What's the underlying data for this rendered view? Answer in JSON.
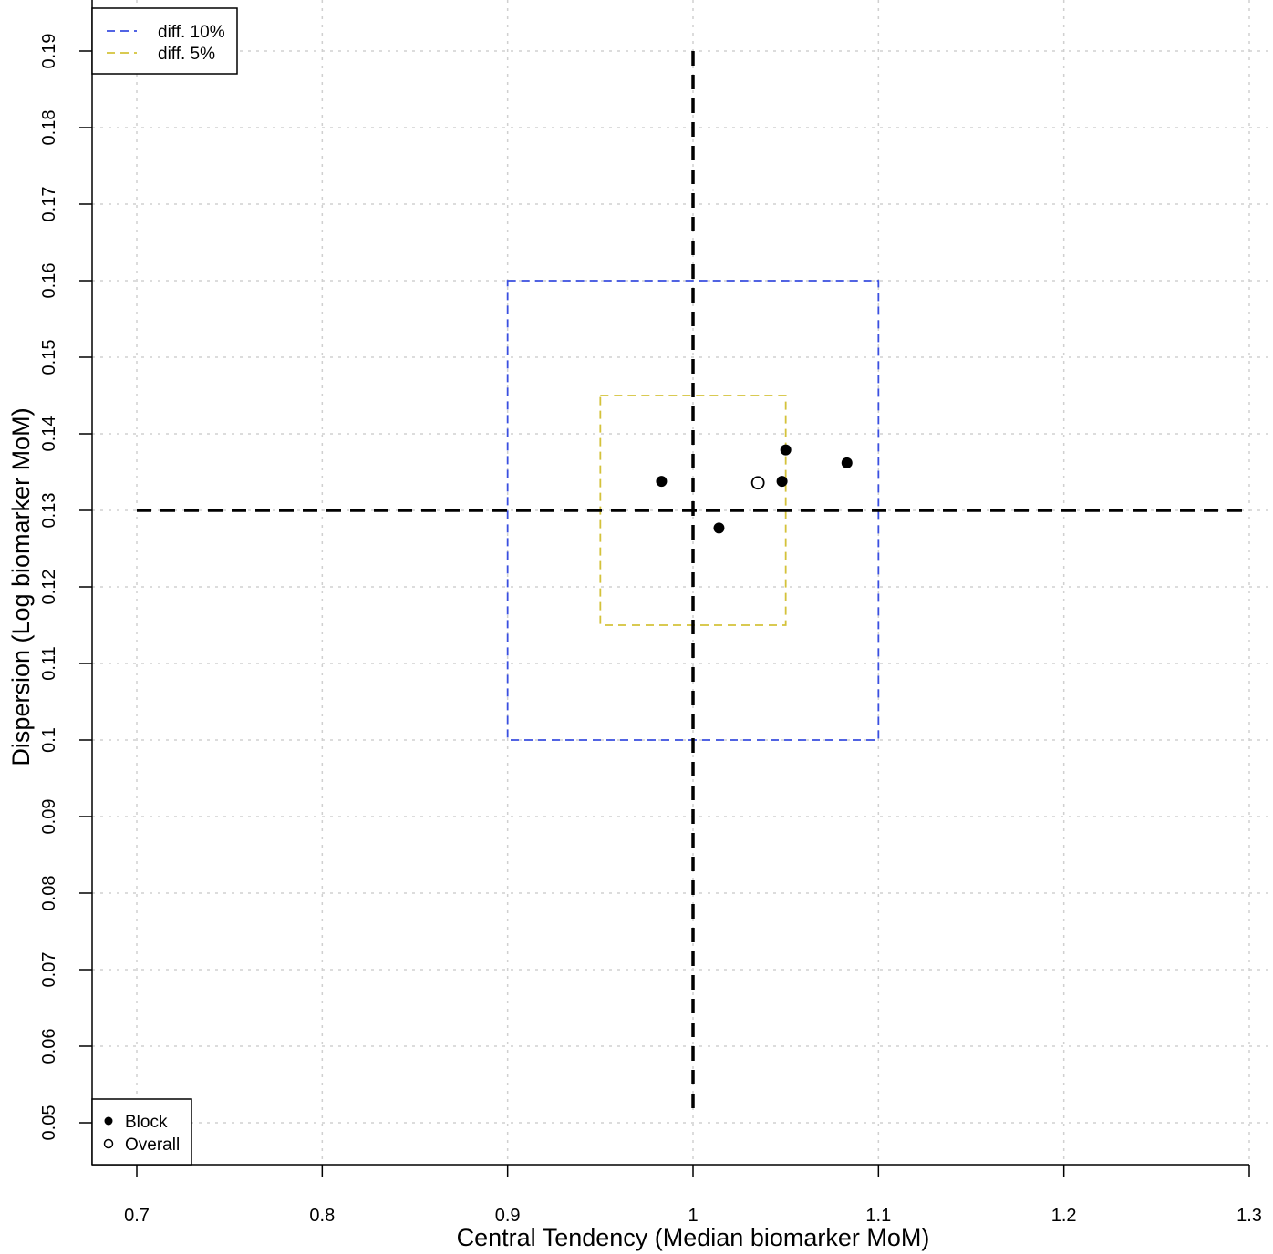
{
  "chart_data": {
    "type": "scatter",
    "title": "",
    "xlabel": "Central Tendency (Median biomarker MoM)",
    "ylabel": "Dispersion (Log biomarker MoM)",
    "xlim": [
      0.7,
      1.3
    ],
    "ylim": [
      0.05,
      0.19
    ],
    "xticks": [
      "0.7",
      "0.8",
      "0.9",
      "1",
      "1.1",
      "1.2",
      "1.3"
    ],
    "yticks": [
      "0.05",
      "0.06",
      "0.07",
      "0.08",
      "0.09",
      "0.1",
      "0.11",
      "0.12",
      "0.13",
      "0.14",
      "0.15",
      "0.16",
      "0.17",
      "0.18",
      "0.19"
    ],
    "grid": true,
    "reference_lines": {
      "vertical_x": 1.0,
      "vertical_y_range": [
        0.0515,
        0.19
      ],
      "horizontal_y": 0.13,
      "horizontal_x_range": [
        0.7,
        1.3
      ],
      "color": "#000000"
    },
    "limit_boxes": [
      {
        "name": "diff. 10%",
        "color": "#3a4fe0",
        "x": [
          0.9,
          1.1
        ],
        "y": [
          0.1,
          0.16
        ]
      },
      {
        "name": "diff. 5%",
        "color": "#d4c23a",
        "x": [
          0.95,
          1.05
        ],
        "y": [
          0.115,
          0.145
        ]
      }
    ],
    "series": [
      {
        "name": "Block",
        "marker": "filled-circle",
        "points": [
          [
            0.983,
            0.1338
          ],
          [
            1.014,
            0.1277
          ],
          [
            1.048,
            0.1338
          ],
          [
            1.05,
            0.1379
          ],
          [
            1.083,
            0.1362
          ]
        ]
      },
      {
        "name": "Overall",
        "marker": "open-circle",
        "points": [
          [
            1.035,
            0.1336
          ]
        ]
      }
    ],
    "legends": [
      {
        "placement": "top-left",
        "entries": [
          {
            "label": "diff. 10%",
            "style": "dashed",
            "color": "#3a4fe0"
          },
          {
            "label": "diff. 5%",
            "style": "dashed",
            "color": "#d4c23a"
          }
        ]
      },
      {
        "placement": "bottom-left",
        "entries": [
          {
            "label": "Block",
            "style": "filled-circle",
            "color": "#000000"
          },
          {
            "label": "Overall",
            "style": "open-circle",
            "color": "#000000"
          }
        ]
      }
    ]
  }
}
